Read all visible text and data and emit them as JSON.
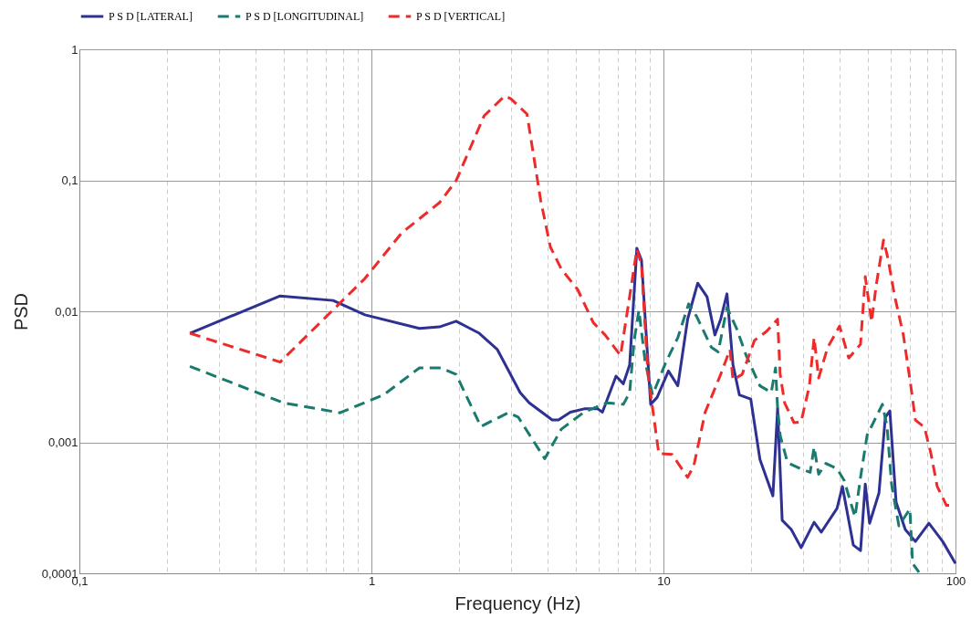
{
  "chart_data": {
    "type": "line",
    "xlabel": "Frequency (Hz)",
    "ylabel": "PSD",
    "log": "xy",
    "grid": true,
    "legend": "top",
    "xlim": [
      0.1,
      100
    ],
    "ylim": [
      0.0001,
      1
    ],
    "xticks": [
      {
        "value": 0.1,
        "label": "0,1"
      },
      {
        "value": 0.2,
        "label": null
      },
      {
        "value": 0.3,
        "label": null
      },
      {
        "value": 0.4,
        "label": null
      },
      {
        "value": 0.5,
        "label": null
      },
      {
        "value": 0.6,
        "label": null
      },
      {
        "value": 0.7,
        "label": null
      },
      {
        "value": 0.8,
        "label": null
      },
      {
        "value": 0.9,
        "label": null
      },
      1,
      {
        "value": 2,
        "label": null
      },
      {
        "value": 3,
        "label": null
      },
      {
        "value": 4,
        "label": null
      },
      {
        "value": 5,
        "label": null
      },
      {
        "value": 6,
        "label": null
      },
      {
        "value": 7,
        "label": null
      },
      {
        "value": 8,
        "label": null
      },
      {
        "value": 9,
        "label": null
      },
      10,
      {
        "value": 20,
        "label": null
      },
      {
        "value": 30,
        "label": null
      },
      {
        "value": 40,
        "label": null
      },
      {
        "value": 50,
        "label": null
      },
      {
        "value": 60,
        "label": null
      },
      {
        "value": 70,
        "label": null
      },
      {
        "value": 80,
        "label": null
      },
      {
        "value": 90,
        "label": null
      },
      100
    ],
    "yticks": [
      {
        "value": 0.0001,
        "label": "0,0001"
      },
      {
        "value": 0.001,
        "label": "0,001"
      },
      {
        "value": 0.01,
        "label": "0,01"
      },
      {
        "value": 0.1,
        "label": "0,1"
      },
      1
    ],
    "series": [
      {
        "name": "P S D [LATERAL]",
        "color": "#2e3192",
        "line_style": "solid",
        "x": [
          0.239,
          0.487,
          0.739,
          0.95,
          1.46,
          1.71,
          1.95,
          2.34,
          2.7,
          3.23,
          3.47,
          4.16,
          4.37,
          4.8,
          5.35,
          5.96,
          6.18,
          6.88,
          7.29,
          7.66,
          8.11,
          8.41,
          9.04,
          9.51,
          10.4,
          11.2,
          12.1,
          13.1,
          14.1,
          15.0,
          15.7,
          16.5,
          17.3,
          18.2,
          19.9,
          21.4,
          23.7,
          24.6,
          25.5,
          27.4,
          29.6,
          32.8,
          34.7,
          39.3,
          41.0,
          44.7,
          47.3,
          49.1,
          50.8,
          54.7,
          57.5,
          59.6,
          62.6,
          67.3,
          72.9,
          81.1,
          90.4,
          100
        ],
        "values": [
          0.0068,
          0.0131,
          0.0121,
          0.0094,
          0.0074,
          0.0076,
          0.0084,
          0.0068,
          0.0051,
          0.0024,
          0.002,
          0.00148,
          0.00148,
          0.0017,
          0.0018,
          0.0018,
          0.0017,
          0.0032,
          0.0028,
          0.0039,
          0.0303,
          0.0245,
          0.00195,
          0.0022,
          0.0035,
          0.0027,
          0.0087,
          0.0164,
          0.0129,
          0.0066,
          0.0087,
          0.0136,
          0.0039,
          0.0023,
          0.00214,
          0.00074,
          0.00039,
          0.00182,
          0.000254,
          0.000216,
          0.000157,
          0.000245,
          0.000206,
          0.000313,
          0.00046,
          0.000164,
          0.000149,
          0.00048,
          0.000241,
          0.00041,
          0.00155,
          0.00174,
          0.00035,
          0.000216,
          0.000175,
          0.000241,
          0.000175,
          0.000119
        ]
      },
      {
        "name": "P S D [LONGITUDINAL]",
        "color": "#1a7a6e",
        "line_style": "dashed",
        "x": [
          0.239,
          0.5,
          0.78,
          1.1,
          1.46,
          1.73,
          1.95,
          2.37,
          2.94,
          3.18,
          3.92,
          4.47,
          5.35,
          6.4,
          7.29,
          7.66,
          7.94,
          8.24,
          8.66,
          9.18,
          10.2,
          11.2,
          12.2,
          13.0,
          14.6,
          15.4,
          16.5,
          17.8,
          19.2,
          21.4,
          23.4,
          24.2,
          24.6,
          25.1,
          26.6,
          29.4,
          31.8,
          32.8,
          34.0,
          36.0,
          39.3,
          41.6,
          43.7,
          45.3,
          47.3,
          49.8,
          52.3,
          56.2,
          58.3,
          60.4,
          64.0,
          69.8,
          71.3,
          75.0
        ],
        "values": [
          0.0038,
          0.002,
          0.00168,
          0.0023,
          0.0037,
          0.0037,
          0.0033,
          0.00132,
          0.00168,
          0.00156,
          0.00075,
          0.00126,
          0.0017,
          0.002,
          0.00195,
          0.0024,
          0.006,
          0.0102,
          0.0041,
          0.0023,
          0.0041,
          0.0063,
          0.0114,
          0.0091,
          0.0053,
          0.0049,
          0.0107,
          0.0074,
          0.0046,
          0.0027,
          0.0024,
          0.0037,
          0.00182,
          0.00113,
          0.0007,
          0.00063,
          0.00059,
          0.00092,
          0.00057,
          0.00069,
          0.00063,
          0.00051,
          0.00035,
          0.00027,
          0.00054,
          0.00113,
          0.00141,
          0.00195,
          0.00132,
          0.00048,
          0.00023,
          0.00031,
          0.000119,
          0.000102
        ]
      },
      {
        "name": "P S D [VERTICAL]",
        "color": "#ee2b2b",
        "line_style": "dashed",
        "x": [
          0.239,
          0.487,
          0.95,
          1.27,
          1.71,
          1.95,
          2.43,
          2.86,
          3.0,
          3.41,
          3.8,
          4.1,
          4.47,
          5.08,
          5.75,
          6.31,
          7.13,
          8.11,
          8.41,
          8.85,
          9.64,
          10.7,
          12.1,
          12.7,
          13.9,
          15.7,
          16.9,
          17.3,
          18.6,
          20.5,
          22.5,
          24.6,
          25.1,
          26.0,
          28.0,
          29.6,
          31.6,
          32.8,
          34.0,
          36.5,
          40.1,
          43.1,
          47.3,
          49.1,
          51.6,
          53.5,
          56.7,
          58.7,
          61.8,
          66.3,
          70.3,
          72.9,
          78.3,
          82.4,
          86.6,
          93.1,
          100
        ],
        "values": [
          0.0068,
          0.0041,
          0.0178,
          0.0397,
          0.0675,
          0.0993,
          0.31,
          0.44,
          0.42,
          0.32,
          0.07,
          0.031,
          0.021,
          0.0147,
          0.0082,
          0.0066,
          0.0046,
          0.0297,
          0.0227,
          0.0033,
          0.00082,
          0.00081,
          0.00054,
          0.00066,
          0.0017,
          0.0033,
          0.0051,
          0.003,
          0.0033,
          0.006,
          0.007,
          0.0087,
          0.0033,
          0.002,
          0.00141,
          0.00143,
          0.0027,
          0.0063,
          0.0031,
          0.0053,
          0.0077,
          0.0044,
          0.0056,
          0.0184,
          0.0083,
          0.0157,
          0.035,
          0.0254,
          0.0133,
          0.0066,
          0.0027,
          0.00148,
          0.0013,
          0.00082,
          0.00046,
          0.00033,
          0.00033
        ]
      }
    ]
  }
}
